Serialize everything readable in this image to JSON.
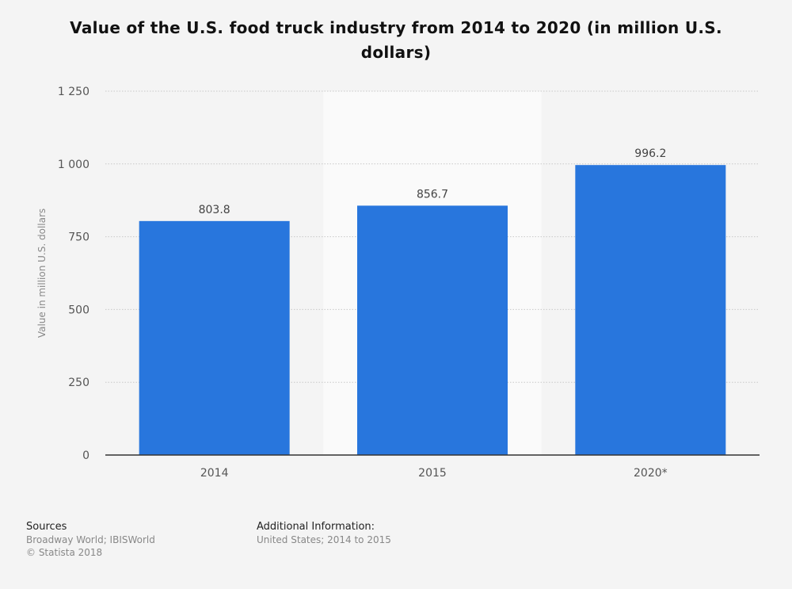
{
  "chart_data": {
    "type": "bar",
    "title": "Value of the U.S. food truck industry from 2014 to 2020 (in million U.S. dollars)",
    "xlabel": "",
    "ylabel": "Value in million U.S. dollars",
    "categories": [
      "2014",
      "2015",
      "2020*"
    ],
    "values": [
      803.8,
      856.7,
      996.2
    ],
    "value_labels": [
      "803.8",
      "856.7",
      "996.2"
    ],
    "ylim": [
      0,
      1250
    ],
    "yticks": [
      0,
      250,
      500,
      750,
      1000,
      1250
    ],
    "ytick_labels": [
      "0",
      "250",
      "500",
      "750",
      "1 000",
      "1 250"
    ],
    "grid": true,
    "highlighted_category": "2015",
    "bar_color": "#2876dd"
  },
  "footer": {
    "sources_heading": "Sources",
    "sources_text": "Broadway World; IBISWorld",
    "copyright": "© Statista 2018",
    "additional_heading": "Additional Information:",
    "additional_text": "United States; 2014 to 2015"
  }
}
